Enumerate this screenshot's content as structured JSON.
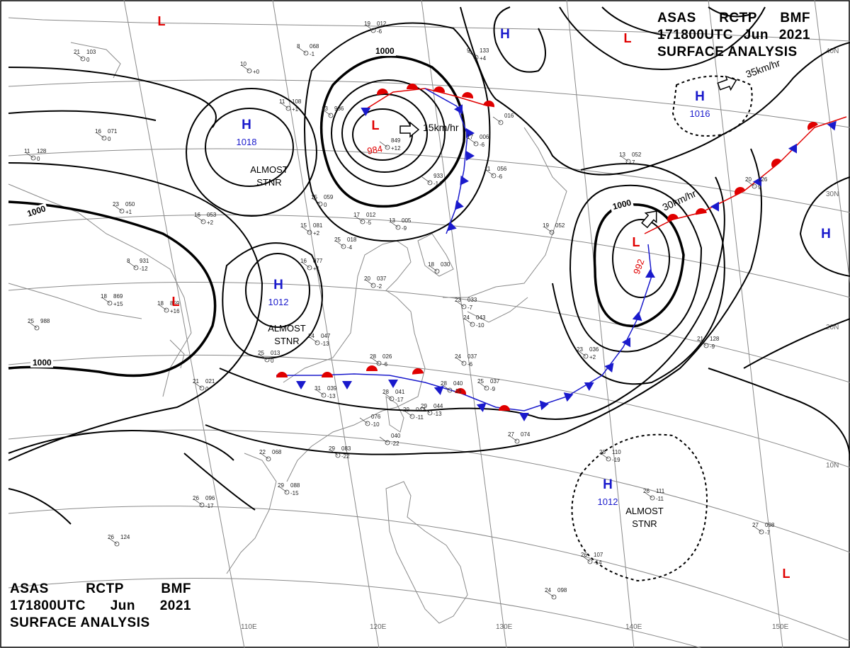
{
  "header": {
    "center": "ASAS",
    "station": "RCTP",
    "product": "BMF",
    "time": "171800UTC",
    "month": "Jun",
    "year": "2021",
    "title": "SURFACE ANALYSIS"
  },
  "colors": {
    "low": "#e00000",
    "high": "#1a1acc",
    "warm_front": "#e00000",
    "cold_front": "#1a1acc",
    "isobar": "#000000",
    "grid": "#8a8a8a",
    "coast": "#8a8a8a"
  },
  "lon_labels": [
    "110E",
    "120E",
    "130E",
    "140E",
    "150E"
  ],
  "lat_labels": [
    "40N",
    "30N",
    "20N",
    "10N"
  ],
  "isobar_labels": [
    "1000",
    "1000",
    "1000",
    "1000"
  ],
  "systems": [
    {
      "type": "H",
      "pressure": "1018",
      "note": [
        "ALMOST",
        "STNR"
      ]
    },
    {
      "type": "H",
      "pressure": "1012",
      "note": [
        "ALMOST",
        "STNR"
      ]
    },
    {
      "type": "L",
      "pressure": "984",
      "motion": "15km/hr"
    },
    {
      "type": "H",
      "pressure": "",
      "note": []
    },
    {
      "type": "H",
      "pressure": "1016",
      "motion": "35km/hr"
    },
    {
      "type": "L",
      "pressure": "992",
      "motion": "30km/hr"
    },
    {
      "type": "H",
      "pressure": "",
      "note": []
    },
    {
      "type": "H",
      "pressure": "1012",
      "note": [
        "ALMOST",
        "STNR"
      ]
    },
    {
      "type": "L",
      "pressure": "",
      "note": []
    },
    {
      "type": "L",
      "pressure": "",
      "note": []
    },
    {
      "type": "L",
      "pressure": "",
      "note": []
    },
    {
      "type": "L",
      "pressure": "",
      "note": []
    }
  ],
  "stations": [
    {
      "t": "21",
      "p": "103",
      "d": "0"
    },
    {
      "t": "8",
      "p": "068",
      "d": "-1"
    },
    {
      "t": "19",
      "p": "012",
      "d": "-6"
    },
    {
      "t": "10",
      "p": "",
      "d": "+0"
    },
    {
      "t": "11",
      "p": "108",
      "d": "+1"
    },
    {
      "t": "16",
      "p": "071",
      "d": "0"
    },
    {
      "t": "11",
      "p": "128",
      "d": "0"
    },
    {
      "t": "13",
      "p": "936",
      "d": ""
    },
    {
      "t": "",
      "p": "849",
      "d": "+12"
    },
    {
      "t": "9",
      "p": "133",
      "d": "+4"
    },
    {
      "t": "",
      "p": "016",
      "d": ""
    },
    {
      "t": "17",
      "p": "006",
      "d": "-6"
    },
    {
      "t": "13",
      "p": "052",
      "d": "7"
    },
    {
      "t": "",
      "p": "933",
      "d": "-14"
    },
    {
      "t": "11",
      "p": "056",
      "d": "-6"
    },
    {
      "t": "23",
      "p": "050",
      "d": "+1"
    },
    {
      "t": "16",
      "p": "053",
      "d": "+2"
    },
    {
      "t": "15",
      "p": "059",
      "d": "0"
    },
    {
      "t": "15",
      "p": "081",
      "d": "+2"
    },
    {
      "t": "17",
      "p": "012",
      "d": "-5"
    },
    {
      "t": "13",
      "p": "005",
      "d": "-9"
    },
    {
      "t": "25",
      "p": "018",
      "d": "-4"
    },
    {
      "t": "18",
      "p": "030",
      "d": ""
    },
    {
      "t": "16",
      "p": "077",
      "d": "+1"
    },
    {
      "t": "8",
      "p": "931",
      "d": "-12"
    },
    {
      "t": "18",
      "p": "869",
      "d": "+15"
    },
    {
      "t": "18",
      "p": "859",
      "d": "+16"
    },
    {
      "t": "25",
      "p": "988",
      "d": ""
    },
    {
      "t": "20",
      "p": "037",
      "d": "-2"
    },
    {
      "t": "23",
      "p": "033",
      "d": "-7"
    },
    {
      "t": "24",
      "p": "043",
      "d": "-10"
    },
    {
      "t": "19",
      "p": "052",
      "d": ""
    },
    {
      "t": "20",
      "p": "126",
      "d": "9"
    },
    {
      "t": "24",
      "p": "047",
      "d": "-13"
    },
    {
      "t": "25",
      "p": "013",
      "d": "0"
    },
    {
      "t": "28",
      "p": "026",
      "d": "-6"
    },
    {
      "t": "24",
      "p": "037",
      "d": "-6"
    },
    {
      "t": "23",
      "p": "036",
      "d": "+2"
    },
    {
      "t": "21",
      "p": "128",
      "d": "-9"
    },
    {
      "t": "21",
      "p": "021",
      "d": "0"
    },
    {
      "t": "31",
      "p": "039",
      "d": "-13"
    },
    {
      "t": "28",
      "p": "040",
      "d": "-16"
    },
    {
      "t": "25",
      "p": "037",
      "d": "-9"
    },
    {
      "t": "28",
      "p": "041",
      "d": "-17"
    },
    {
      "t": "29",
      "p": "043",
      "d": "-11"
    },
    {
      "t": "29",
      "p": "044",
      "d": "-13"
    },
    {
      "t": "27",
      "p": "074",
      "d": ""
    },
    {
      "t": "28",
      "p": "110",
      "d": "-19"
    },
    {
      "t": "22",
      "p": "068",
      "d": ""
    },
    {
      "t": "29",
      "p": "083",
      "d": "-22"
    },
    {
      "t": "29",
      "p": "088",
      "d": "-15"
    },
    {
      "t": "26",
      "p": "096",
      "d": "-17"
    },
    {
      "t": "26",
      "p": "111",
      "d": "-11"
    },
    {
      "t": "27",
      "p": "098",
      "d": "-7"
    },
    {
      "t": "26",
      "p": "124",
      "d": ""
    },
    {
      "t": "26",
      "p": "107",
      "d": "-14"
    },
    {
      "t": "24",
      "p": "098",
      "d": ""
    },
    {
      "t": "",
      "p": "076",
      "d": "-10"
    },
    {
      "t": "",
      "p": "040",
      "d": "-22"
    }
  ]
}
